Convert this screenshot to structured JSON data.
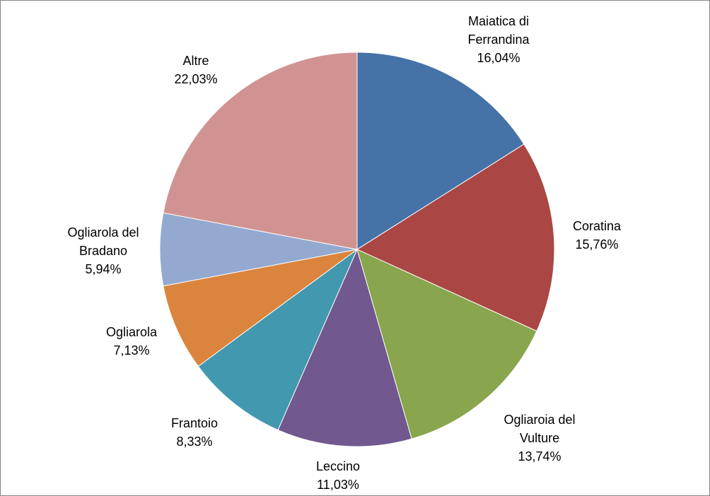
{
  "chart_data": {
    "type": "pie",
    "title": "",
    "start_angle_deg": 0,
    "direction": "clockwise",
    "slices": [
      {
        "name_lines": [
          "Maiatica di",
          "Ferrandina"
        ],
        "value": 16.04,
        "label": "16,04%",
        "color": "#4572A7"
      },
      {
        "name_lines": [
          "Coratina"
        ],
        "value": 15.76,
        "label": "15,76%",
        "color": "#AA4643"
      },
      {
        "name_lines": [
          "Ogliaroia del",
          "Vulture"
        ],
        "value": 13.74,
        "label": "13,74%",
        "color": "#89A54E"
      },
      {
        "name_lines": [
          "Leccino"
        ],
        "value": 11.03,
        "label": "11,03%",
        "color": "#71588F"
      },
      {
        "name_lines": [
          "Frantoio"
        ],
        "value": 8.33,
        "label": "8,33%",
        "color": "#4198AF"
      },
      {
        "name_lines": [
          "Ogliarola"
        ],
        "value": 7.13,
        "label": "7,13%",
        "color": "#DB843D"
      },
      {
        "name_lines": [
          "Ogliarola del",
          "Bradano"
        ],
        "value": 5.94,
        "label": "5,94%",
        "color": "#93A9CF"
      },
      {
        "name_lines": [
          "Altre"
        ],
        "value": 22.03,
        "label": "22,03%",
        "color": "#D19392"
      }
    ]
  }
}
